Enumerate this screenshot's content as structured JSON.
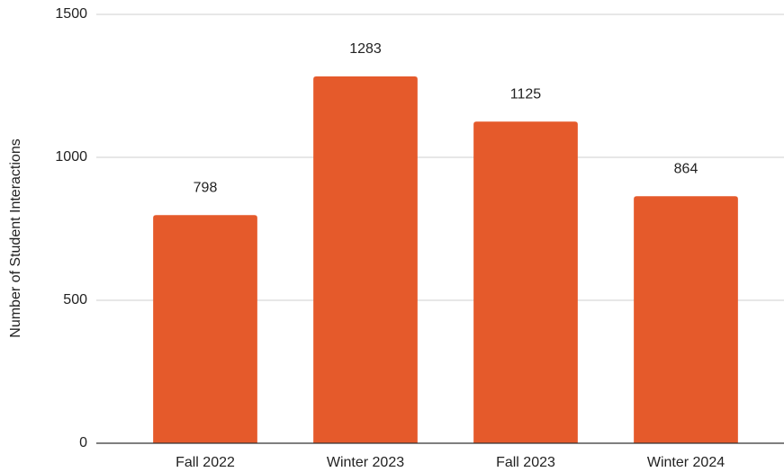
{
  "chart_data": {
    "type": "bar",
    "y_axis_label": "Number of Student Interactions",
    "categories": [
      "Fall 2022",
      "Winter 2023",
      "Fall 2023",
      "Winter 2024"
    ],
    "values": [
      798,
      1283,
      1125,
      864
    ],
    "color": "#e55a2b",
    "ylim": [
      0,
      1500
    ],
    "yticks": [
      0,
      500,
      1000,
      1500
    ],
    "grid": true
  }
}
